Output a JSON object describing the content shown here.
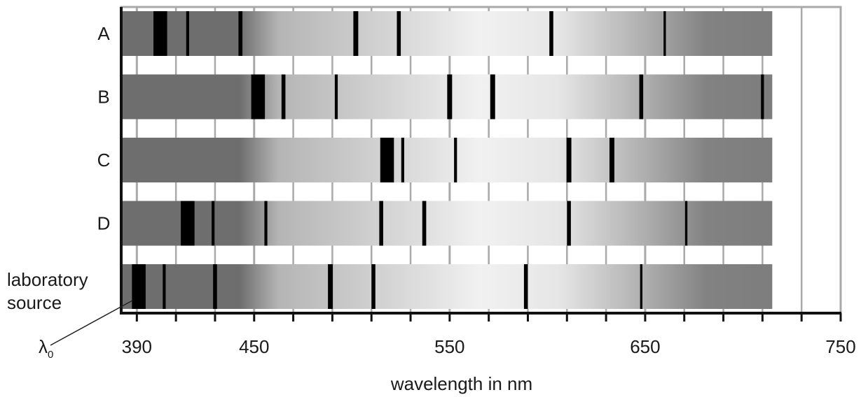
{
  "chart_data": {
    "type": "spectrum",
    "xlabel": "wavelength in nm",
    "x_ticks": [
      390,
      450,
      550,
      650,
      750
    ],
    "x_range": [
      382,
      750
    ],
    "spectrum_end": 715,
    "reference_marker": {
      "label": "λ",
      "subscript": "0"
    },
    "spectra": [
      {
        "name": "A",
        "lines": [
          {
            "wl": 402,
            "width": 7
          },
          {
            "wl": 416,
            "width": 1.5
          },
          {
            "wl": 443,
            "width": 2
          },
          {
            "wl": 502,
            "width": 2.5
          },
          {
            "wl": 524,
            "width": 2
          },
          {
            "wl": 602,
            "width": 2
          },
          {
            "wl": 660,
            "width": 1.2
          }
        ]
      },
      {
        "name": "B",
        "lines": [
          {
            "wl": 452,
            "width": 7
          },
          {
            "wl": 465,
            "width": 2
          },
          {
            "wl": 492,
            "width": 1.5
          },
          {
            "wl": 550,
            "width": 2.5
          },
          {
            "wl": 572,
            "width": 2.5
          },
          {
            "wl": 648,
            "width": 2
          },
          {
            "wl": 710,
            "width": 1.5
          }
        ]
      },
      {
        "name": "C",
        "lines": [
          {
            "wl": 518,
            "width": 7
          },
          {
            "wl": 526,
            "width": 1.5
          },
          {
            "wl": 553,
            "width": 1.5
          },
          {
            "wl": 611,
            "width": 2.5
          },
          {
            "wl": 633,
            "width": 2.5
          }
        ]
      },
      {
        "name": "D",
        "lines": [
          {
            "wl": 416,
            "width": 7
          },
          {
            "wl": 429,
            "width": 1.5
          },
          {
            "wl": 456,
            "width": 1.5
          },
          {
            "wl": 515,
            "width": 2
          },
          {
            "wl": 537,
            "width": 2
          },
          {
            "wl": 611,
            "width": 2
          },
          {
            "wl": 671,
            "width": 1.2
          }
        ]
      },
      {
        "name": "laboratory source",
        "name_lines": [
          "laboratory",
          "source"
        ],
        "lines": [
          {
            "wl": 391,
            "width": 7
          },
          {
            "wl": 404,
            "width": 1.5
          },
          {
            "wl": 430,
            "width": 2
          },
          {
            "wl": 489,
            "width": 2.5
          },
          {
            "wl": 511,
            "width": 2
          },
          {
            "wl": 589,
            "width": 2
          },
          {
            "wl": 648,
            "width": 1.2
          }
        ]
      }
    ]
  }
}
